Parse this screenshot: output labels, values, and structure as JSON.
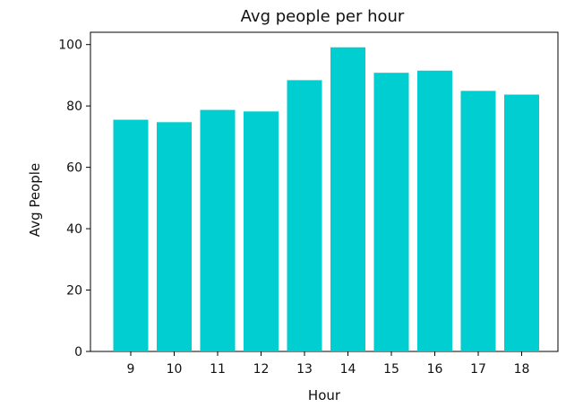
{
  "chart_data": {
    "type": "bar",
    "title": "Avg people per hour",
    "xlabel": "Hour",
    "ylabel": "Avg People",
    "categories": [
      "9",
      "10",
      "11",
      "12",
      "13",
      "14",
      "15",
      "16",
      "17",
      "18"
    ],
    "values": [
      75.5,
      74.7,
      78.7,
      78.2,
      88.4,
      99.1,
      90.8,
      91.5,
      84.9,
      83.7
    ],
    "ylim": [
      0,
      104
    ],
    "yticks": [
      "0",
      "20",
      "40",
      "60",
      "80",
      "100"
    ],
    "grid": false,
    "bar_color": "#00ced1"
  }
}
